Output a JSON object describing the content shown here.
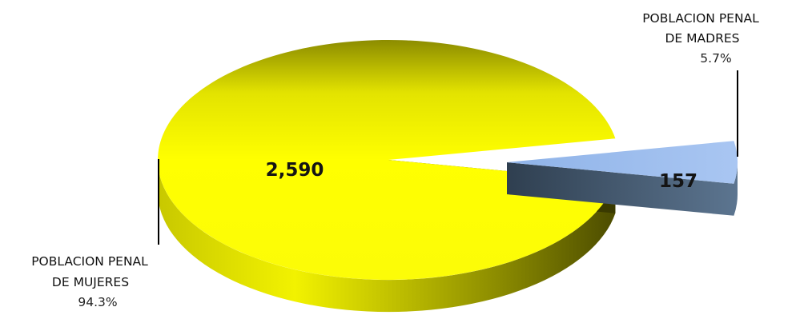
{
  "chart_data": {
    "type": "pie",
    "title": "",
    "legend": "none",
    "style": "3d-exploded",
    "categories": [
      "POBLACION PENAL DE MUJERES",
      "POBLACION PENAL DE MADRES"
    ],
    "values": [
      2590,
      157
    ],
    "value_labels": [
      "2,590",
      "157"
    ],
    "percent_labels": [
      "94.3%",
      "5.7%"
    ],
    "label_lines": [
      [
        "POBLACION PENAL",
        "DE MUJERES"
      ],
      [
        "POBLACION PENAL",
        "DE MADRES"
      ]
    ],
    "colors": {
      "mujeres_top": "#FFFF00",
      "mujeres_side": "#8A8A00",
      "madres_top": "#99BBEE",
      "madres_side": "#445566"
    }
  }
}
